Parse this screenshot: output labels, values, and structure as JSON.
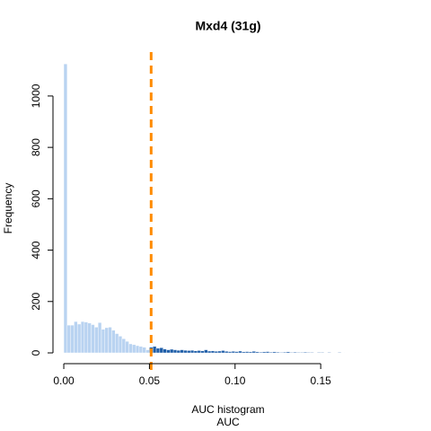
{
  "chart_data": {
    "type": "histogram",
    "title": "Mxd4 (31g)",
    "subtitle": "AUC histogram",
    "xlabel": "AUC",
    "ylabel": "Frequency",
    "bins": [
      0,
      0.002,
      0.004,
      0.006,
      0.008,
      0.01,
      0.012,
      0.014,
      0.016,
      0.018,
      0.02,
      0.022,
      0.024,
      0.026,
      0.028,
      0.03,
      0.032,
      0.034,
      0.036,
      0.038,
      0.04,
      0.042,
      0.044,
      0.046,
      0.048,
      0.05,
      0.052,
      0.054,
      0.056,
      0.058,
      0.06,
      0.062,
      0.064,
      0.066,
      0.068,
      0.07,
      0.072,
      0.074,
      0.076,
      0.078,
      0.08,
      0.082,
      0.084,
      0.086,
      0.088,
      0.09,
      0.092,
      0.094,
      0.096,
      0.098,
      0.1,
      0.102,
      0.104,
      0.106,
      0.108,
      0.11,
      0.112,
      0.114,
      0.116,
      0.118,
      0.12,
      0.122,
      0.124,
      0.126,
      0.128,
      0.13,
      0.132,
      0.134,
      0.136,
      0.138,
      0.14,
      0.142,
      0.144,
      0.146,
      0.148,
      0.15,
      0.152,
      0.154,
      0.156,
      0.158,
      0.16,
      0.162,
      0.164,
      0.166,
      0.168,
      0.17,
      0.172,
      0.174,
      0.176,
      0.178,
      0.18,
      0.182,
      0.184,
      0.186,
      0.188,
      0.19,
      0.192
    ],
    "counts": [
      1125,
      108,
      108,
      122,
      112,
      122,
      120,
      116,
      110,
      100,
      118,
      92,
      98,
      100,
      88,
      75,
      65,
      55,
      45,
      35,
      32,
      28,
      25,
      22,
      12,
      22,
      25,
      18,
      20,
      15,
      12,
      14,
      12,
      10,
      12,
      10,
      9,
      10,
      8,
      9,
      8,
      12,
      7,
      8,
      6,
      7,
      9,
      6,
      5,
      6,
      5,
      7,
      4,
      5,
      4,
      6,
      4,
      3,
      4,
      5,
      3,
      4,
      3,
      2,
      3,
      4,
      2,
      3,
      2,
      2,
      3,
      2,
      2,
      1,
      2,
      2,
      1,
      2,
      1,
      1,
      2,
      1,
      1,
      1,
      1,
      1,
      0,
      1,
      1,
      0,
      1,
      1,
      0,
      1,
      1,
      1
    ],
    "color": "#b9d3f1",
    "highlight_color": "#1f5ea8",
    "vline": 0.051,
    "vline_color": "#ff8c00",
    "xlim": [
      -0.005,
      0.195
    ],
    "ylim": [
      0,
      1150
    ],
    "xticks": [
      {
        "value": 0,
        "label": "0.00"
      },
      0.05,
      {
        "value": 0.1,
        "label": "0.10"
      },
      0.15
    ],
    "yticks": [
      0,
      200,
      400,
      600,
      800,
      1000
    ]
  }
}
